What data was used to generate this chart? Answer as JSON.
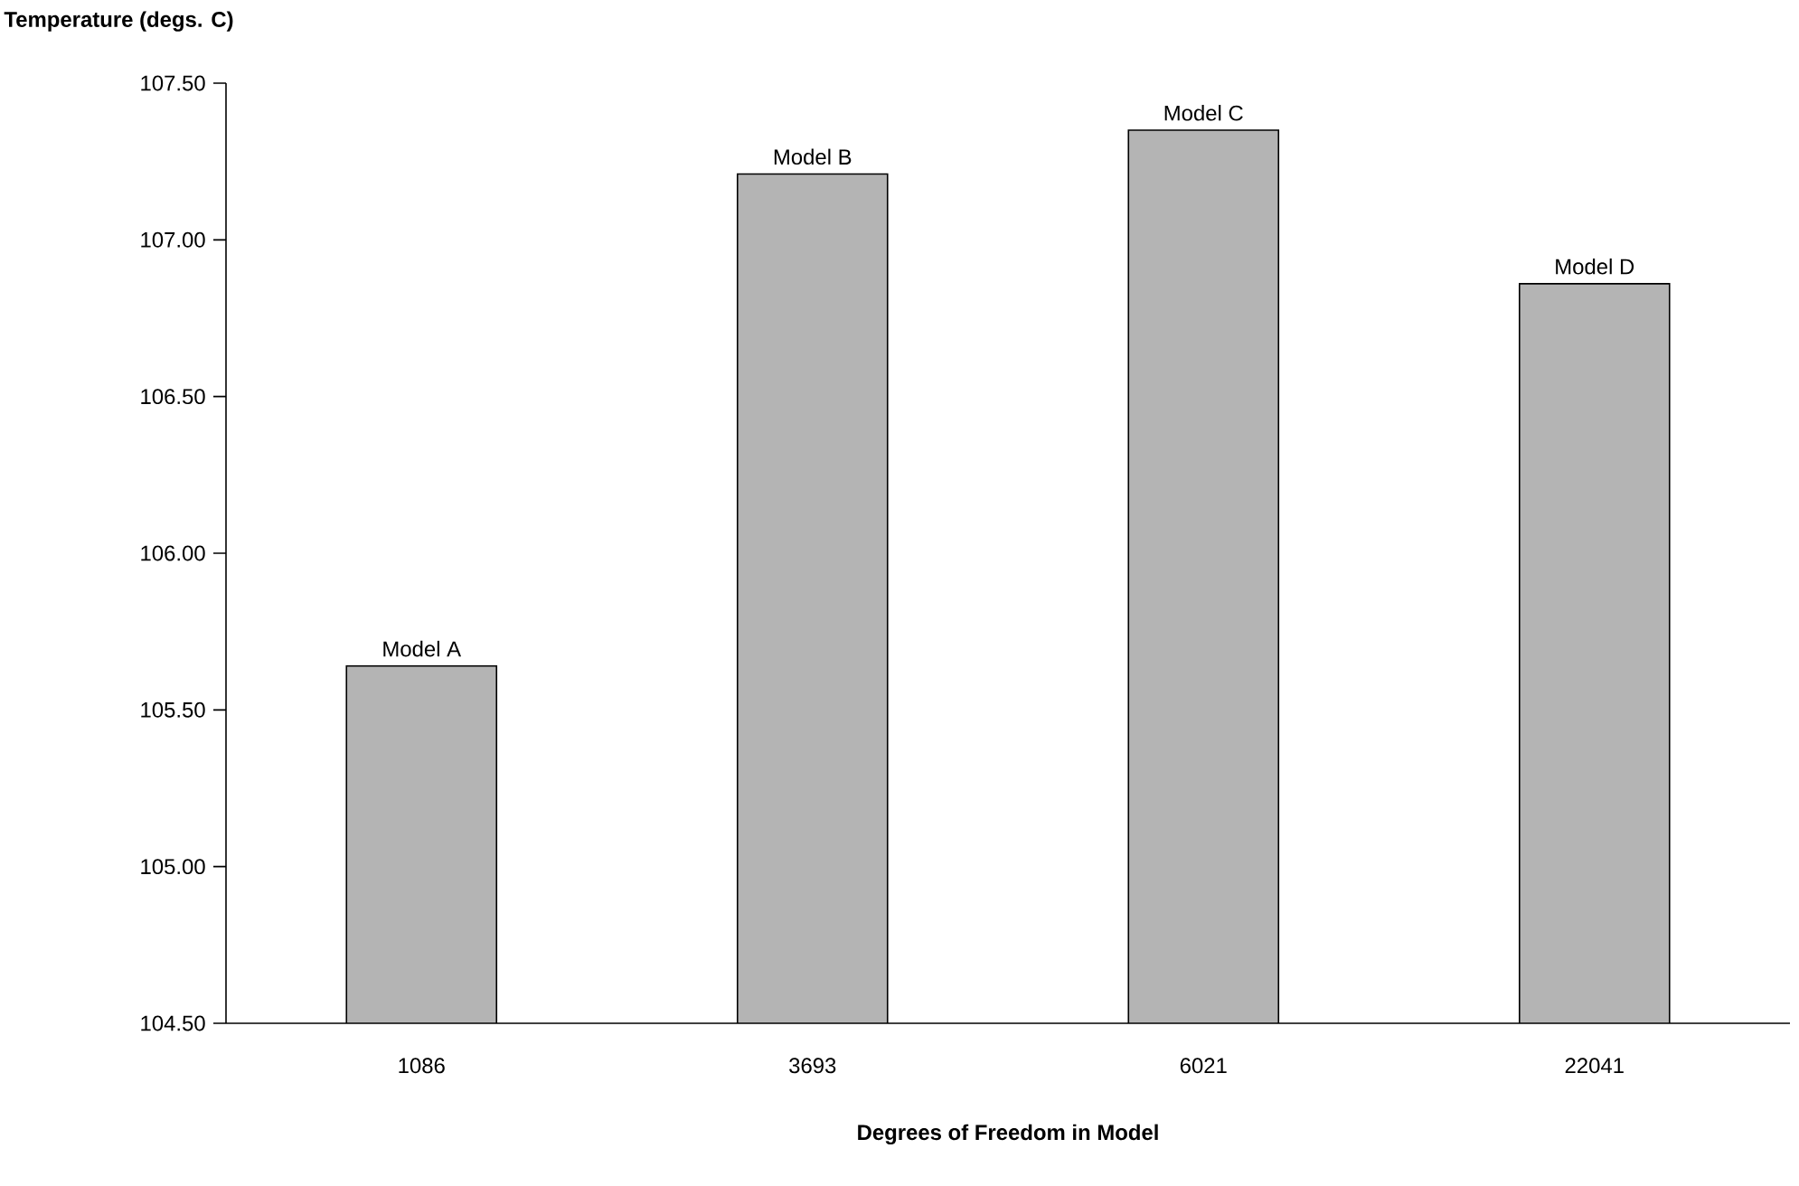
{
  "chart_data": {
    "type": "bar",
    "ylabel": "Temperature (degs. C)",
    "xlabel": "Degrees of Freedom in Model",
    "categories": [
      "1086",
      "3693",
      "6021",
      "22041"
    ],
    "values": [
      105.64,
      107.21,
      107.35,
      106.86
    ],
    "color": "#b4b4b4",
    "ylim": [
      104.5,
      107.5
    ],
    "yticks": [
      {
        "value": 104.5,
        "label": "104.50"
      },
      {
        "value": 105.0,
        "label": "105.00"
      },
      {
        "value": 105.5,
        "label": "105.50"
      },
      {
        "value": 106.0,
        "label": "106.00"
      },
      {
        "value": 106.5,
        "label": "106.50"
      },
      {
        "value": 107.0,
        "label": "107.00"
      },
      {
        "value": 107.5,
        "label": "107.50"
      }
    ],
    "annotations": [
      {
        "text": "Model A",
        "x": "1086",
        "y": 105.64
      },
      {
        "text": "Model B",
        "x": "3693",
        "y": 107.21
      },
      {
        "text": "Model C",
        "x": "6021",
        "y": 107.35
      },
      {
        "text": "Model D",
        "x": "22041",
        "y": 106.86
      }
    ]
  }
}
